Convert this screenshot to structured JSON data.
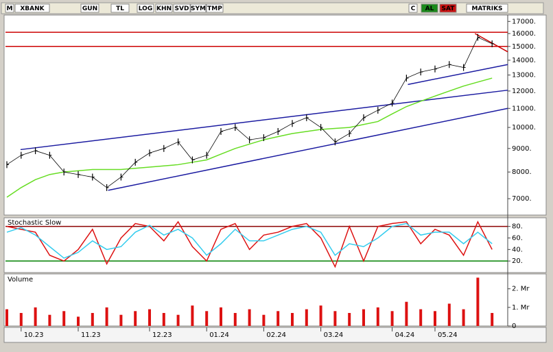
{
  "toolbar": {
    "buttons": [
      "M",
      "XBANK",
      "GUN",
      "TL",
      "LOG",
      "KHN",
      "SVD",
      "SYM",
      "TMP",
      "C",
      "AL",
      "SAT",
      "MATRIKS"
    ]
  },
  "chart_data": [
    {
      "type": "price",
      "log_scale": true,
      "color": "#000000",
      "ma_color": "#66dd22",
      "categories": [
        null,
        "10.23",
        null,
        null,
        null,
        "11.23",
        null,
        null,
        null,
        null,
        "12.23",
        null,
        null,
        null,
        "01.24",
        null,
        null,
        null,
        "02.24",
        null,
        null,
        null,
        "03.24",
        null,
        null,
        null,
        null,
        "04.24",
        null,
        null,
        "05.24",
        null,
        null,
        null,
        null
      ],
      "values": [
        8300,
        8700,
        8900,
        8700,
        8000,
        7900,
        7800,
        7400,
        7800,
        8400,
        8800,
        9000,
        9300,
        8500,
        8700,
        9800,
        10000,
        9400,
        9500,
        9800,
        10200,
        10500,
        10000,
        9300,
        9700,
        10500,
        10900,
        11300,
        12800,
        13200,
        13400,
        13700,
        13500,
        15700,
        15200
      ],
      "ma": [
        7050,
        7400,
        7700,
        7900,
        8000,
        8050,
        8100,
        8100,
        8100,
        8150,
        8200,
        8250,
        8300,
        8400,
        8500,
        8750,
        9000,
        9200,
        9400,
        9550,
        9700,
        9800,
        9900,
        9950,
        10000,
        10150,
        10300,
        10700,
        11100,
        11400,
        11700,
        12000,
        12300,
        12550,
        12800
      ],
      "ylim": [
        6450,
        17550
      ],
      "yticks": [
        {
          "value": 7000,
          "label": "7000."
        },
        {
          "value": 8000,
          "label": "8000."
        },
        {
          "value": 9000,
          "label": "9000."
        },
        {
          "value": 10000,
          "label": "10000."
        },
        {
          "value": 11000,
          "label": "11000."
        },
        {
          "value": 12000,
          "label": "12000."
        },
        {
          "value": 13000,
          "label": "13000."
        },
        {
          "value": 14000,
          "label": "14000."
        },
        {
          "value": 15000,
          "label": "15000."
        },
        {
          "value": 16000,
          "label": "16000."
        },
        {
          "value": 17000,
          "label": "17000."
        }
      ],
      "hlines": [
        16100,
        15000
      ],
      "hline_color": "#cc0000",
      "trendlines": [
        {
          "from": [
            0.96,
            8950
          ],
          "to": [
            35.1,
            12050
          ],
          "color": "#1a1aa0"
        },
        {
          "from": [
            7.1,
            7300
          ],
          "to": [
            35.1,
            11000
          ],
          "color": "#1a1aa0"
        },
        {
          "from": [
            28.1,
            12400
          ],
          "to": [
            35.1,
            13700
          ],
          "color": "#1a1aa0"
        },
        {
          "from": [
            32.8,
            16000
          ],
          "to": [
            35.1,
            14600
          ],
          "color": "#cc0000"
        }
      ]
    },
    {
      "type": "stochastic",
      "title": "Stochastic Slow",
      "ylim": [
        0,
        95
      ],
      "yticks": [
        {
          "value": 20,
          "label": "20."
        },
        {
          "value": 40,
          "label": "40."
        },
        {
          "value": 60,
          "label": "60."
        },
        {
          "value": 80,
          "label": "80."
        }
      ],
      "levels": [
        {
          "value": 80,
          "color": "#8b0000"
        },
        {
          "value": 20,
          "color": "#008000"
        }
      ],
      "series": [
        {
          "color": "#dd1111",
          "values": [
            80,
            75,
            70,
            30,
            20,
            40,
            75,
            15,
            60,
            85,
            80,
            55,
            88,
            45,
            20,
            75,
            85,
            40,
            65,
            70,
            80,
            85,
            60,
            10,
            80,
            20,
            80,
            85,
            88,
            50,
            75,
            65,
            30,
            88,
            40
          ]
        },
        {
          "color": "#33ccee",
          "values": [
            70,
            78,
            65,
            45,
            25,
            35,
            55,
            40,
            45,
            70,
            82,
            65,
            75,
            60,
            30,
            50,
            75,
            55,
            55,
            65,
            75,
            80,
            70,
            30,
            50,
            45,
            60,
            80,
            85,
            65,
            70,
            70,
            50,
            70,
            50
          ]
        }
      ]
    },
    {
      "type": "volume",
      "title": "Volume",
      "color": "#dd1111",
      "ylim": [
        0,
        2800000
      ],
      "yticks": [
        0,
        {
          "value": 1000000,
          "label": "1. Mr"
        },
        {
          "value": 2000000,
          "label": "2. Mr"
        }
      ],
      "values": [
        900000,
        700000,
        1000000,
        600000,
        800000,
        500000,
        700000,
        1000000,
        600000,
        800000,
        900000,
        700000,
        600000,
        1100000,
        800000,
        1000000,
        700000,
        900000,
        600000,
        800000,
        700000,
        900000,
        1100000,
        800000,
        700000,
        900000,
        1000000,
        800000,
        1300000,
        900000,
        800000,
        1200000,
        900000,
        2600000,
        700000
      ]
    }
  ]
}
